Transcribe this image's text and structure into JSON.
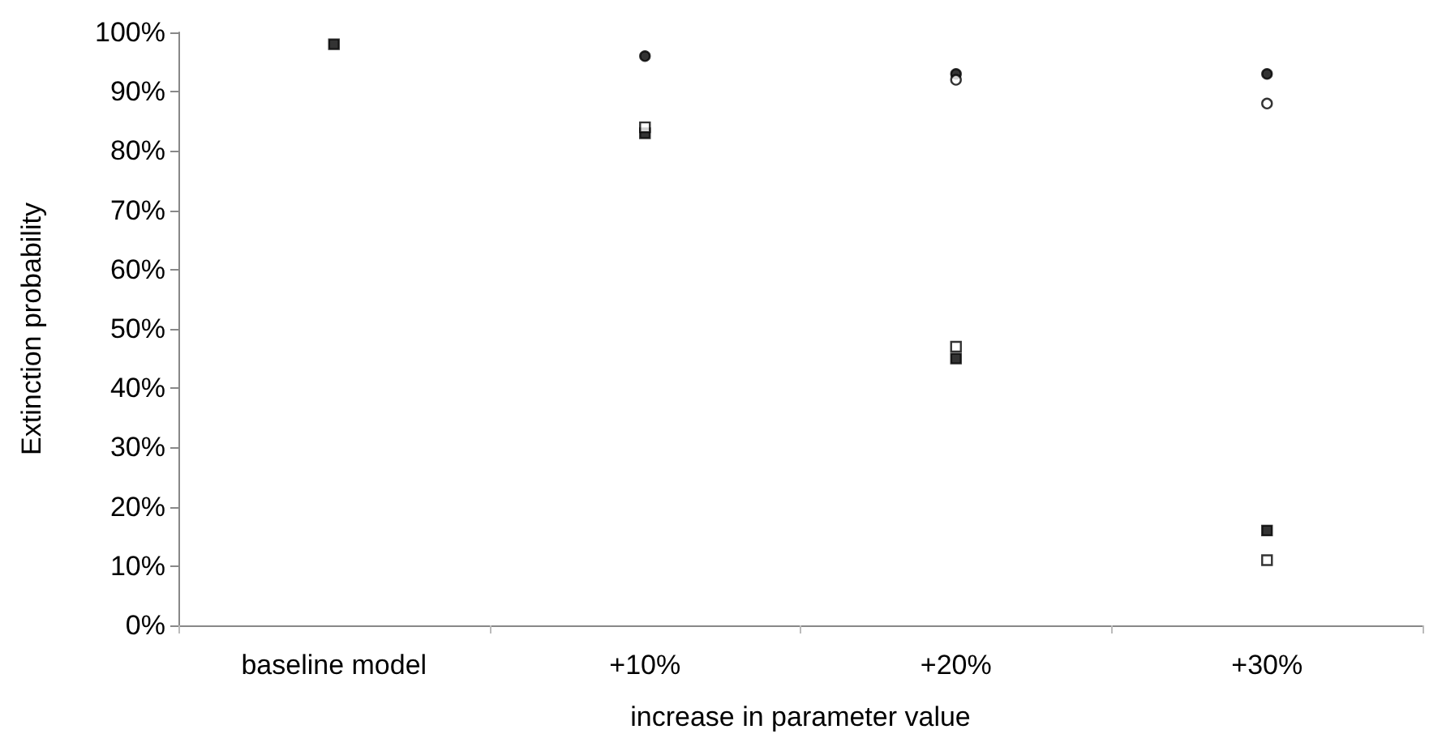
{
  "chart_data": {
    "type": "scatter",
    "xlabel": "increase in parameter value",
    "ylabel": "Extinction probability",
    "categories": [
      "baseline model",
      "+10%",
      "+20%",
      "+30%"
    ],
    "series": [
      {
        "color": "#000000",
        "marker": "circle",
        "values": [
          null,
          96,
          93,
          93
        ]
      },
      {
        "color": "#ffffff",
        "marker": "circle",
        "values": [
          null,
          null,
          92,
          88
        ]
      },
      {
        "color": "#000000",
        "marker": "square",
        "values": [
          98,
          83,
          45,
          16
        ]
      },
      {
        "color": "#ffffff",
        "marker": "square",
        "values": [
          null,
          84,
          47,
          11
        ]
      }
    ],
    "ylim": [
      0,
      100
    ],
    "yticks": [
      {
        "value": 0,
        "label": "0%"
      },
      {
        "value": 10,
        "label": "10%"
      },
      {
        "value": 20,
        "label": "20%"
      },
      {
        "value": 30,
        "label": "30%"
      },
      {
        "value": 40,
        "label": "40%"
      },
      {
        "value": 50,
        "label": "50%"
      },
      {
        "value": 60,
        "label": "60%"
      },
      {
        "value": 70,
        "label": "70%"
      },
      {
        "value": 80,
        "label": "80%"
      },
      {
        "value": 90,
        "label": "90%"
      },
      {
        "value": 100,
        "label": "100%"
      }
    ],
    "grid": false
  }
}
